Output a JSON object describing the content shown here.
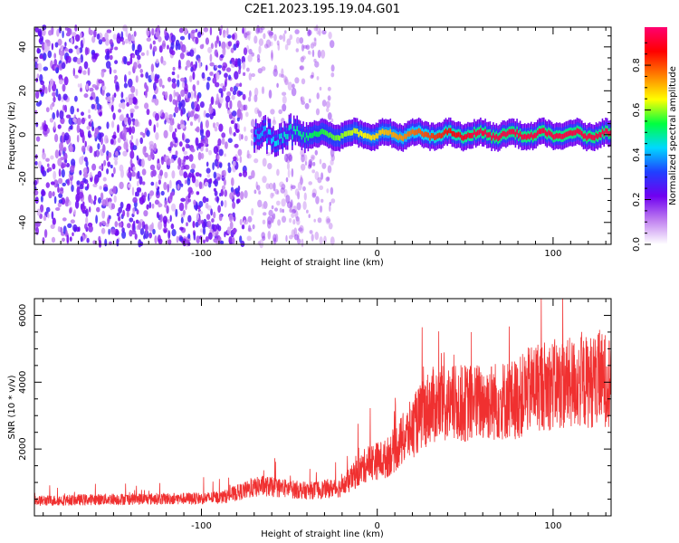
{
  "title": "C2E1.2023.195.19.04.G01",
  "chart_data": [
    {
      "type": "heatmap",
      "xlabel": "Height of straight line (km)",
      "ylabel": "Frequency (Hz)",
      "xlim": [
        -195,
        133
      ],
      "ylim": [
        -50,
        49
      ],
      "xticks": [
        -100,
        0,
        100
      ],
      "yticks": [
        -40,
        -20,
        0,
        20,
        40
      ],
      "colorbar": {
        "label": "Normalized spectral amplitude",
        "range": [
          0.0,
          0.97
        ],
        "ticks": [
          0.0,
          0.2,
          0.4,
          0.6,
          0.8
        ],
        "colors": [
          "#ffffff",
          "#c080f0",
          "#7000f0",
          "#2040ff",
          "#00d8ff",
          "#00ff40",
          "#ffff00",
          "#ff8000",
          "#ff0000",
          "#ff0070"
        ]
      },
      "features": {
        "noise_region_x": [
          -195,
          -75
        ],
        "sparse_region_x": [
          -75,
          -25
        ],
        "signal_start_x": -70,
        "signal_line_frequency": 0,
        "signal_strength_start": 0.4,
        "signal_strength_end": 0.95
      }
    },
    {
      "type": "line",
      "xlabel": "Height of straight line (km)",
      "ylabel": "SNR (10 * v/v)",
      "xlim": [
        -195,
        133
      ],
      "ylim": [
        0,
        6500
      ],
      "xticks": [
        -100,
        0,
        100
      ],
      "yticks": [
        2000,
        4000,
        6000
      ],
      "color": "#f03030",
      "trend": [
        {
          "x": -195,
          "y": 450
        },
        {
          "x": -150,
          "y": 500
        },
        {
          "x": -100,
          "y": 520
        },
        {
          "x": -88,
          "y": 560
        },
        {
          "x": -66,
          "y": 900
        },
        {
          "x": -40,
          "y": 750
        },
        {
          "x": -20,
          "y": 850
        },
        {
          "x": -5,
          "y": 1600
        },
        {
          "x": 5,
          "y": 1700
        },
        {
          "x": 15,
          "y": 2300
        },
        {
          "x": 30,
          "y": 3300
        },
        {
          "x": 60,
          "y": 3400
        },
        {
          "x": 80,
          "y": 3500
        },
        {
          "x": 90,
          "y": 3900
        },
        {
          "x": 110,
          "y": 3950
        },
        {
          "x": 133,
          "y": 4100
        }
      ],
      "noise_fraction": 0.35
    }
  ]
}
